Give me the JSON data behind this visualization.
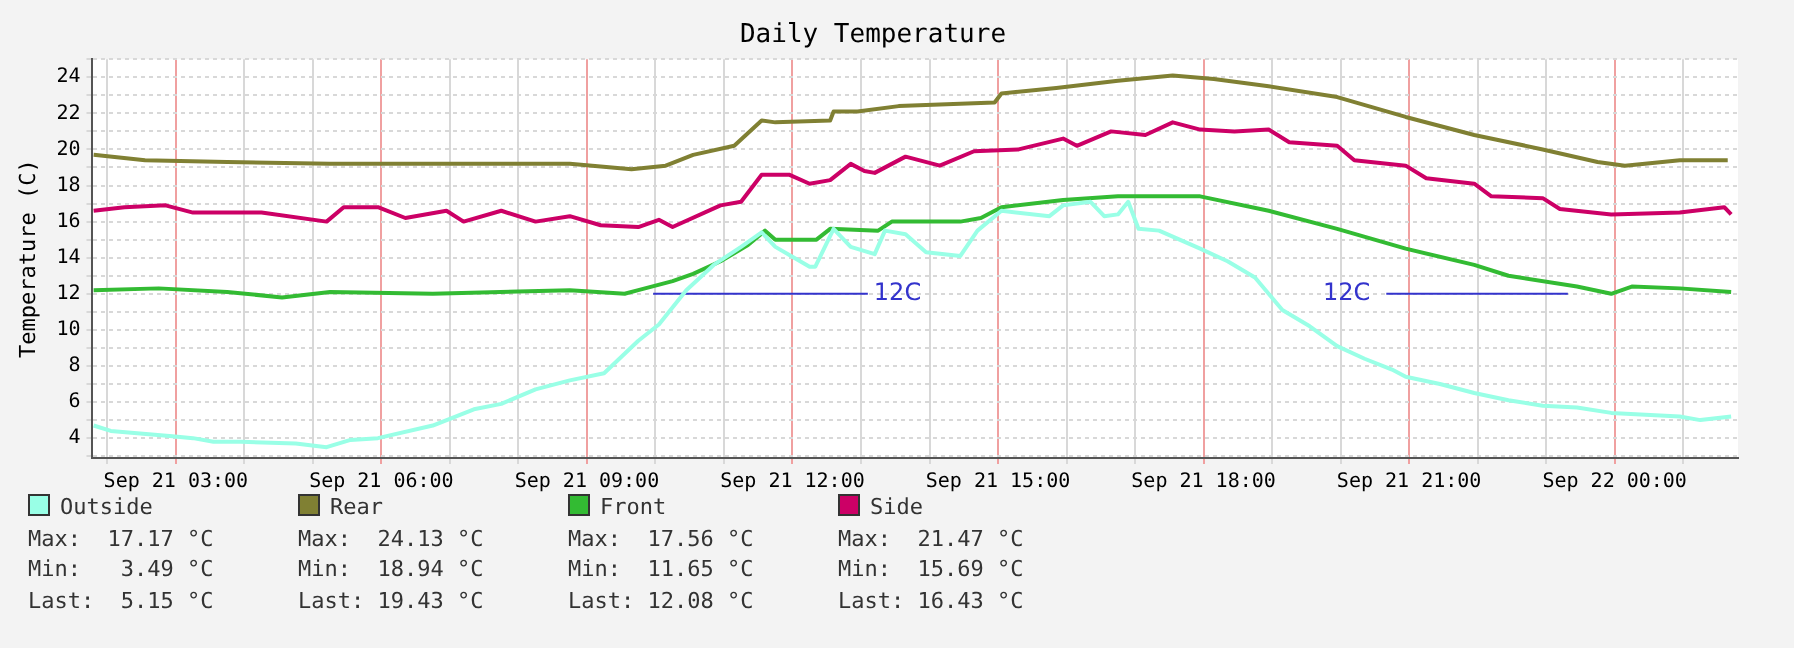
{
  "chart_data": {
    "type": "line",
    "title": "Daily Temperature",
    "ylabel": "Temperature (C)",
    "xlim": [
      "--09-21T01:47",
      "--09-22T01:48"
    ],
    "xticks": [
      {
        "value": "--09-21T02:00",
        "label": null
      },
      {
        "value": "--09-21T03:00",
        "label": "Sep 21 03:00"
      },
      {
        "value": "--09-21T04:00",
        "label": null
      },
      {
        "value": "--09-21T05:00",
        "label": null
      },
      {
        "value": "--09-21T06:00",
        "label": "Sep 21 06:00"
      },
      {
        "value": "--09-21T07:00",
        "label": null
      },
      {
        "value": "--09-21T08:00",
        "label": null
      },
      {
        "value": "--09-21T09:00",
        "label": "Sep 21 09:00"
      },
      {
        "value": "--09-21T10:00",
        "label": null
      },
      {
        "value": "--09-21T11:00",
        "label": null
      },
      {
        "value": "--09-21T12:00",
        "label": "Sep 21 12:00"
      },
      {
        "value": "--09-21T13:00",
        "label": null
      },
      {
        "value": "--09-21T14:00",
        "label": null
      },
      {
        "value": "--09-21T15:00",
        "label": "Sep 21 15:00"
      },
      {
        "value": "--09-21T16:00",
        "label": null
      },
      {
        "value": "--09-21T17:00",
        "label": null
      },
      {
        "value": "--09-21T18:00",
        "label": "Sep 21 18:00"
      },
      {
        "value": "--09-21T19:00",
        "label": null
      },
      {
        "value": "--09-21T20:00",
        "label": null
      },
      {
        "value": "--09-21T21:00",
        "label": "Sep 21 21:00"
      },
      {
        "value": "--09-21T22:00",
        "label": null
      },
      {
        "value": "--09-21T23:00",
        "label": null
      },
      {
        "value": "--09-22T00:00",
        "label": "Sep 22 00:00"
      },
      {
        "value": "--09-22T01:00",
        "label": null
      }
    ],
    "ylim": [
      2.9,
      25
    ],
    "yticks": [
      {
        "value": 3,
        "label": null
      },
      4,
      {
        "value": 5,
        "label": null
      },
      6,
      {
        "value": 7,
        "label": null
      },
      8,
      {
        "value": 9,
        "label": null
      },
      10,
      {
        "value": 11,
        "label": null
      },
      12,
      {
        "value": 13,
        "label": null
      },
      14,
      {
        "value": 15,
        "label": null
      },
      16,
      {
        "value": 17,
        "label": null
      },
      18,
      {
        "value": 19,
        "label": null
      },
      20,
      {
        "value": 21,
        "label": null
      },
      22,
      {
        "value": 23,
        "label": null
      },
      24,
      {
        "value": 25,
        "label": null
      }
    ],
    "grid": true,
    "legend": "bottom left",
    "series": [
      {
        "name": "Outside",
        "color": "#99ffe6",
        "x": [
          "--09-21T01:48",
          "--09-21T02:03",
          "--09-21T02:57",
          "--09-21T03:15",
          "--09-21T03:33",
          "--09-21T03:57",
          "--09-21T04:45",
          "--09-21T05:12",
          "--09-21T05:33",
          "--09-21T05:57",
          "--09-21T06:45",
          "--09-21T07:21",
          "--09-21T07:45",
          "--09-21T08:15",
          "--09-21T08:45",
          "--09-21T09:15",
          "--09-21T09:45",
          "--09-21T10:03",
          "--09-21T10:27",
          "--09-21T10:51",
          "--09-21T11:15",
          "--09-21T11:33",
          "--09-21T11:45",
          "--09-21T12:15",
          "--09-21T12:20",
          "--09-21T12:36",
          "--09-21T12:51",
          "--09-21T13:12",
          "--09-21T13:21",
          "--09-21T13:39",
          "--09-21T13:57",
          "--09-21T14:27",
          "--09-21T14:42",
          "--09-21T15:03",
          "--09-21T15:45",
          "--09-21T15:57",
          "--09-21T16:21",
          "--09-21T16:33",
          "--09-21T16:45",
          "--09-21T16:54",
          "--09-21T17:03",
          "--09-21T17:21",
          "--09-21T17:57",
          "--09-21T18:21",
          "--09-21T18:45",
          "--09-21T19:09",
          "--09-21T19:33",
          "--09-21T19:57",
          "--09-21T20:21",
          "--09-21T20:45",
          "--09-21T20:57",
          "--09-21T21:27",
          "--09-21T21:57",
          "--09-21T22:27",
          "--09-21T22:57",
          "--09-21T23:27",
          "--09-21T23:57",
          "--09-22T00:57",
          "--09-22T01:15",
          "--09-22T01:42"
        ],
        "values": [
          4.7,
          4.4,
          4.1,
          4.0,
          3.8,
          3.8,
          3.7,
          3.5,
          3.9,
          4.0,
          4.7,
          5.6,
          5.9,
          6.7,
          7.2,
          7.6,
          9.4,
          10.3,
          12.2,
          13.6,
          14.6,
          15.4,
          14.6,
          13.5,
          13.5,
          15.6,
          14.6,
          14.2,
          15.5,
          15.3,
          14.3,
          14.1,
          15.5,
          16.6,
          16.3,
          16.9,
          17.1,
          16.3,
          16.4,
          17.1,
          15.6,
          15.5,
          14.5,
          13.8,
          12.9,
          11.1,
          10.2,
          9.1,
          8.4,
          7.8,
          7.4,
          7.0,
          6.5,
          6.1,
          5.8,
          5.7,
          5.4,
          5.2,
          5.0,
          5.2
        ]
      },
      {
        "name": "Rear",
        "color": "#808033",
        "x": [
          "--09-21T01:48",
          "--09-21T02:33",
          "--09-21T03:45",
          "--09-21T05:15",
          "--09-21T06:45",
          "--09-21T08:45",
          "--09-21T09:39",
          "--09-21T10:09",
          "--09-21T10:33",
          "--09-21T11:09",
          "--09-21T11:33",
          "--09-21T11:45",
          "--09-21T12:33",
          "--09-21T12:36",
          "--09-21T12:57",
          "--09-21T13:33",
          "--09-21T14:57",
          "--09-21T15:03",
          "--09-21T15:51",
          "--09-21T16:45",
          "--09-21T17:33",
          "--09-21T18:09",
          "--09-21T18:57",
          "--09-21T19:57",
          "--09-21T20:57",
          "--09-21T21:57",
          "--09-21T22:57",
          "--09-21T23:45",
          "--09-22T00:09",
          "--09-22T00:57",
          "--09-22T01:39"
        ],
        "values": [
          19.7,
          19.4,
          19.3,
          19.2,
          19.2,
          19.2,
          18.9,
          19.1,
          19.7,
          20.2,
          21.6,
          21.5,
          21.6,
          22.1,
          22.1,
          22.4,
          22.6,
          23.1,
          23.4,
          23.8,
          24.1,
          23.9,
          23.5,
          22.9,
          21.8,
          20.8,
          20.0,
          19.3,
          19.1,
          19.4,
          19.4
        ]
      },
      {
        "name": "Front",
        "color": "#33bb33",
        "x": [
          "--09-21T01:48",
          "--09-21T02:45",
          "--09-21T03:45",
          "--09-21T04:33",
          "--09-21T05:15",
          "--09-21T06:45",
          "--09-21T08:45",
          "--09-21T09:33",
          "--09-21T09:45",
          "--09-21T10:15",
          "--09-21T10:33",
          "--09-21T10:57",
          "--09-21T11:21",
          "--09-21T11:36",
          "--09-21T11:45",
          "--09-21T12:21",
          "--09-21T12:33",
          "--09-21T13:15",
          "--09-21T13:27",
          "--09-21T14:27",
          "--09-21T14:45",
          "--09-21T15:03",
          "--09-21T15:57",
          "--09-21T16:45",
          "--09-21T17:57",
          "--09-21T18:57",
          "--09-21T19:57",
          "--09-21T20:57",
          "--09-21T21:57",
          "--09-21T22:27",
          "--09-21T23:27",
          "--09-21T23:57",
          "--09-22T00:15",
          "--09-22T00:57",
          "--09-22T01:42"
        ],
        "values": [
          12.2,
          12.3,
          12.1,
          11.8,
          12.1,
          12.0,
          12.2,
          12.0,
          12.2,
          12.7,
          13.1,
          13.8,
          14.7,
          15.5,
          15.0,
          15.0,
          15.6,
          15.5,
          16.0,
          16.0,
          16.2,
          16.8,
          17.2,
          17.4,
          17.4,
          16.6,
          15.6,
          14.5,
          13.6,
          13.0,
          12.4,
          12.0,
          12.4,
          12.3,
          12.1
        ]
      },
      {
        "name": "Side",
        "color": "#cc0066",
        "x": [
          "--09-21T01:48",
          "--09-21T02:15",
          "--09-21T02:51",
          "--09-21T03:15",
          "--09-21T04:15",
          "--09-21T05:12",
          "--09-21T05:27",
          "--09-21T05:57",
          "--09-21T06:21",
          "--09-21T06:57",
          "--09-21T07:12",
          "--09-21T07:45",
          "--09-21T08:15",
          "--09-21T08:45",
          "--09-21T09:12",
          "--09-21T09:45",
          "--09-21T10:03",
          "--09-21T10:15",
          "--09-21T10:57",
          "--09-21T11:15",
          "--09-21T11:33",
          "--09-21T11:57",
          "--09-21T12:15",
          "--09-21T12:33",
          "--09-21T12:51",
          "--09-21T13:03",
          "--09-21T13:12",
          "--09-21T13:39",
          "--09-21T14:09",
          "--09-21T14:39",
          "--09-21T15:18",
          "--09-21T15:57",
          "--09-21T16:09",
          "--09-21T16:39",
          "--09-21T17:09",
          "--09-21T17:33",
          "--09-21T17:57",
          "--09-21T18:27",
          "--09-21T18:57",
          "--09-21T19:15",
          "--09-21T19:57",
          "--09-21T20:12",
          "--09-21T20:57",
          "--09-21T21:15",
          "--09-21T21:57",
          "--09-21T22:12",
          "--09-21T22:57",
          "--09-21T23:12",
          "--09-21T23:57",
          "--09-22T00:57",
          "--09-22T01:36",
          "--09-22T01:42"
        ],
        "values": [
          16.6,
          16.8,
          16.9,
          16.5,
          16.5,
          16.0,
          16.8,
          16.8,
          16.2,
          16.6,
          16.0,
          16.6,
          16.0,
          16.3,
          15.8,
          15.7,
          16.1,
          15.7,
          16.9,
          17.1,
          18.6,
          18.6,
          18.1,
          18.3,
          19.2,
          18.8,
          18.7,
          19.6,
          19.1,
          19.9,
          20.0,
          20.6,
          20.2,
          21.0,
          20.8,
          21.5,
          21.1,
          21.0,
          21.1,
          20.4,
          20.2,
          19.4,
          19.1,
          18.4,
          18.1,
          17.4,
          17.3,
          16.7,
          16.4,
          16.5,
          16.8,
          16.4
        ]
      },
      {
        "type": "line",
        "color": "#3333cc",
        "x": [
          "--09-21T09:58",
          "--09-21T13:06"
        ],
        "values": [
          12,
          12
        ]
      },
      {
        "type": "line",
        "color": "#3333cc",
        "x": [
          "--09-21T20:40",
          "--09-21T23:19"
        ],
        "values": [
          12,
          12
        ]
      }
    ],
    "annotations": [
      {
        "text": "12C",
        "x": "--09-21T13:06",
        "y": 12
      },
      {
        "text": "12C",
        "x": "--09-21T20:40",
        "y": 12
      },
      "Max:  17.17 °C",
      "Min:   3.49 °C",
      "Last:  5.15 °C",
      "Max:  24.13 °C",
      "Min:  18.94 °C",
      "Last: 19.43 °C",
      "Max:  17.56 °C",
      "Min:  11.65 °C",
      "Last: 12.08 °C",
      "Max:  21.47 °C",
      "Min:  15.69 °C",
      "Last: 16.43 °C"
    ]
  }
}
